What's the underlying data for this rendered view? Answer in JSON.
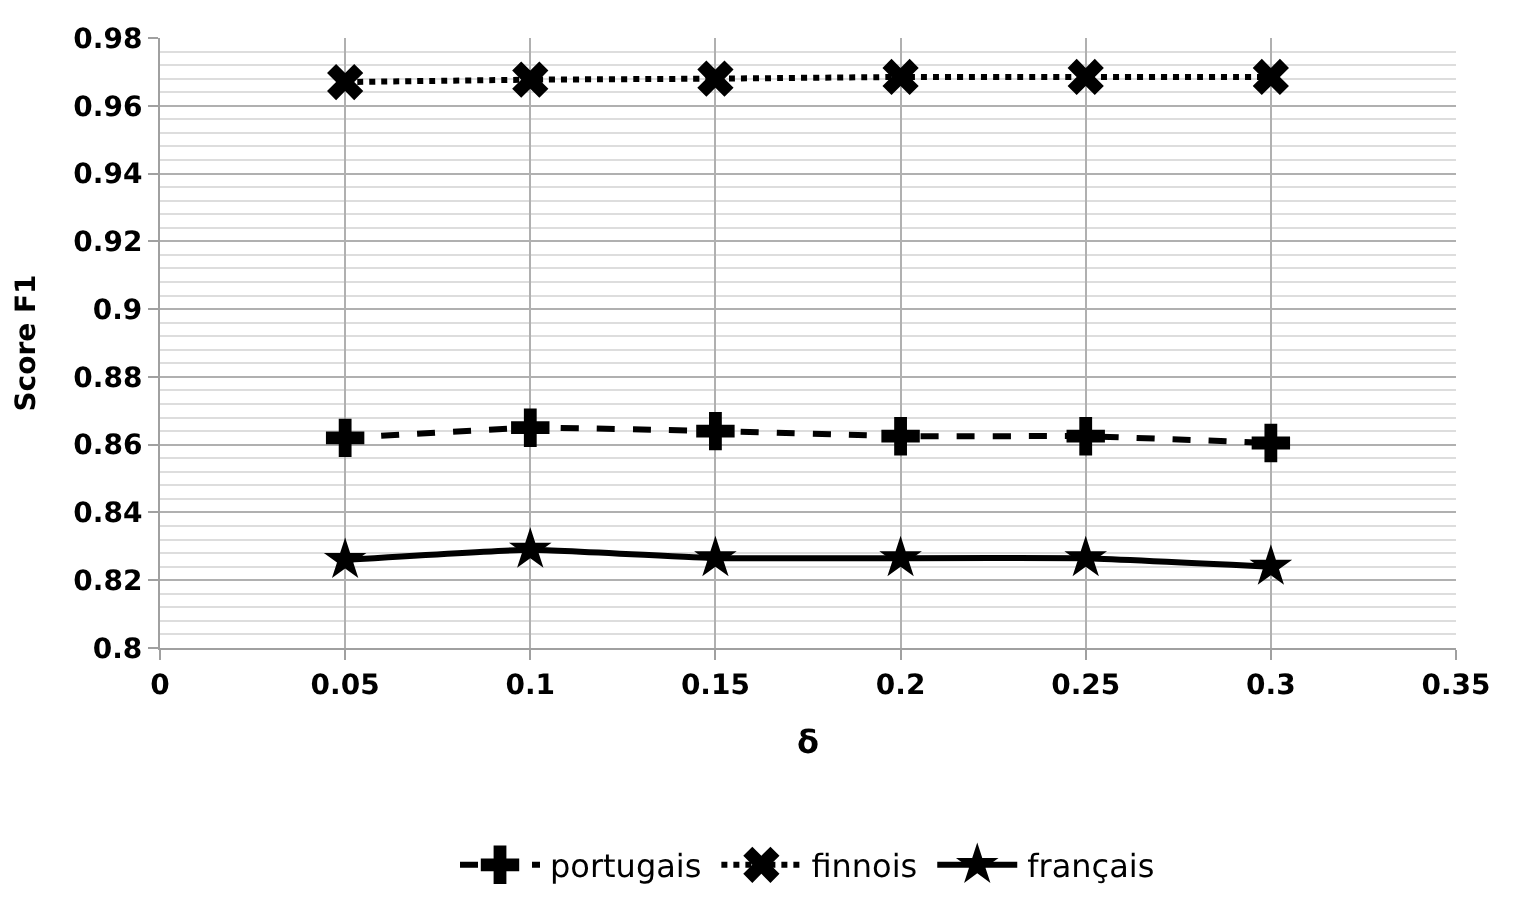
{
  "chart_data": {
    "type": "line",
    "xlabel": "δ",
    "ylabel": "Score F1",
    "x": [
      0.05,
      0.1,
      0.15,
      0.2,
      0.25,
      0.3
    ],
    "series": [
      {
        "name": "portugais",
        "color": "#000000",
        "marker": "cross",
        "line_style": "dashed",
        "values": [
          0.862,
          0.865,
          0.864,
          0.8625,
          0.8625,
          0.8605
        ]
      },
      {
        "name": "finnois",
        "color": "#000000",
        "marker": "x",
        "line_style": "dotted",
        "values": [
          0.967,
          0.9677,
          0.968,
          0.9685,
          0.9685,
          0.9685
        ]
      },
      {
        "name": "français",
        "color": "#000000",
        "marker": "star",
        "line_style": "solid",
        "values": [
          0.826,
          0.829,
          0.8265,
          0.8265,
          0.8265,
          0.824
        ]
      }
    ],
    "xlim": [
      0,
      0.35
    ],
    "xticks": [
      0,
      0.05,
      0.1,
      0.15,
      0.2,
      0.25,
      0.3,
      0.35
    ],
    "ylim": [
      0.8,
      0.98
    ],
    "yticks": [
      0.8,
      0.82,
      0.84,
      0.86,
      0.88,
      0.9,
      0.92,
      0.94,
      0.96,
      0.98
    ],
    "grid": true,
    "legend": "bottom"
  }
}
